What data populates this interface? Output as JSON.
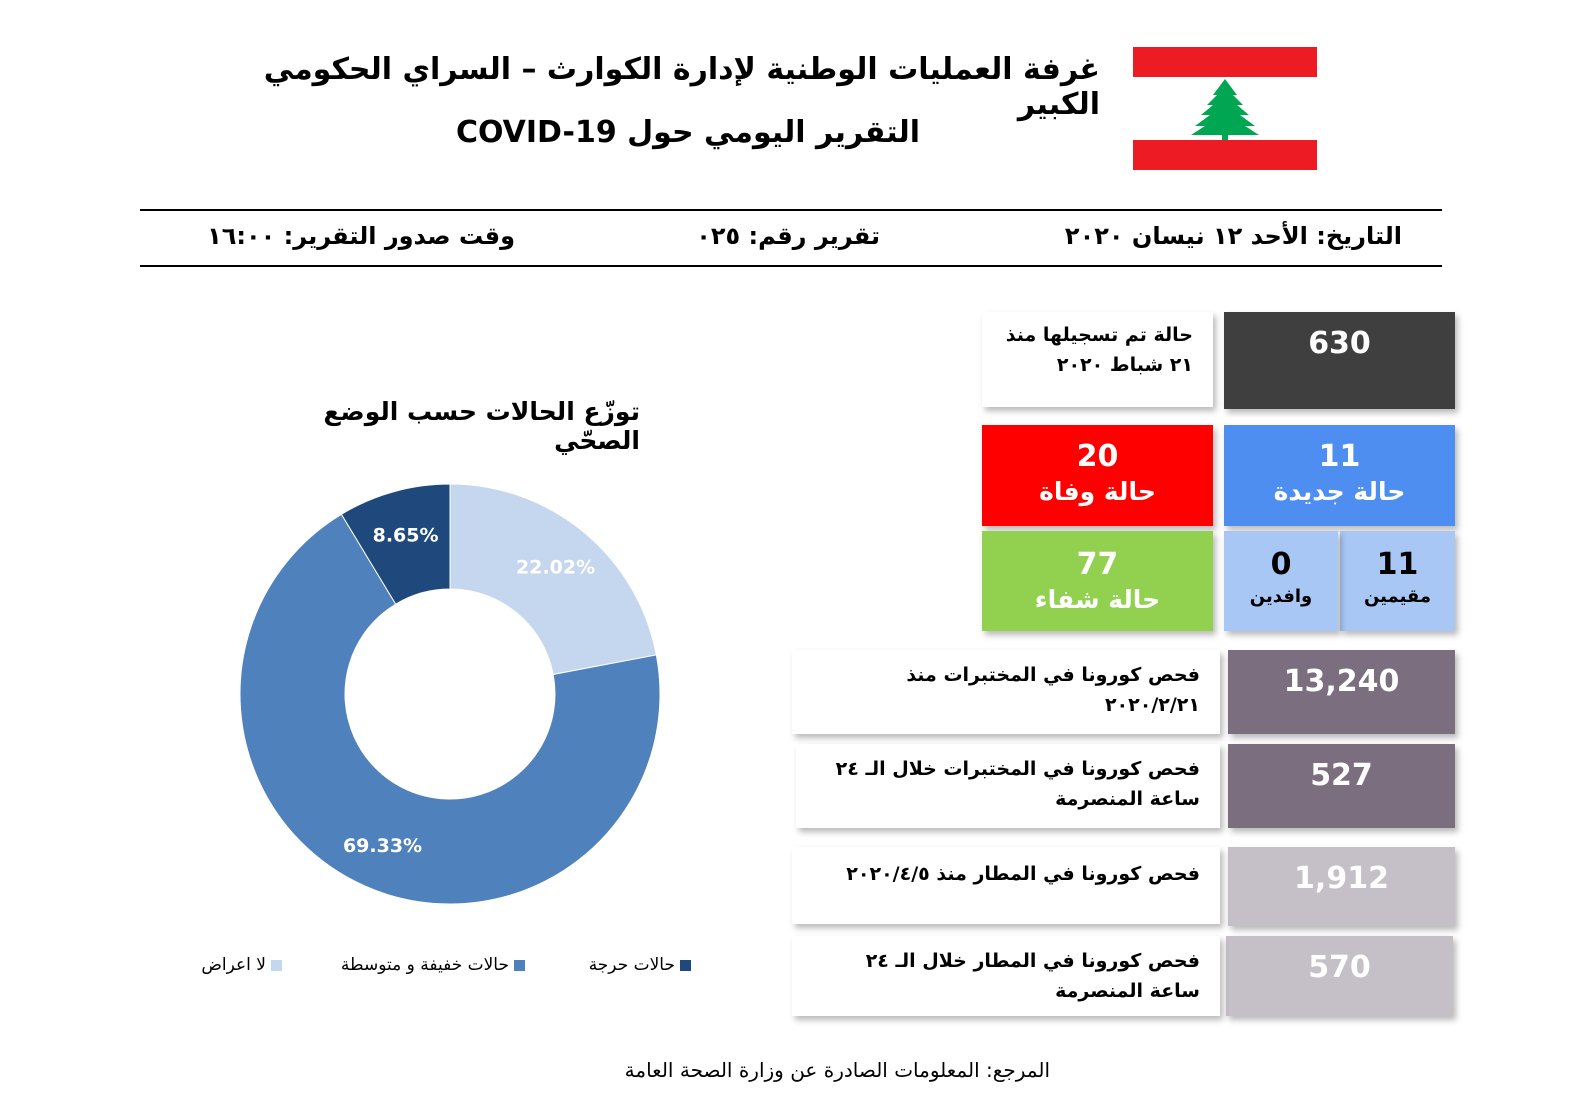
{
  "header": {
    "title": "غرفة العمليات الوطنية لإدارة الكوارث – السراي الحكومي الكبير",
    "subtitle": "التقرير اليومي حول COVID-19",
    "flag": {
      "icon": "lebanon-flag-cedar-icon",
      "red": "#ed1c24",
      "green": "#00a651"
    }
  },
  "meta": {
    "date": "التاريخ: الأحد ١٢ نيسان ٢٠٢٠",
    "report_number": "تقرير رقم: ٠٢٥",
    "issue_time": "وقت صدور التقرير: ١٦:٠٠"
  },
  "stats": {
    "total": {
      "value": "630",
      "label_line1": "حالة تم تسجيلها منذ",
      "label_line2": "٢١ شباط ٢٠٢٠",
      "color": "#3f3f3f"
    },
    "new_cases": {
      "value": "11",
      "label": "حالة جديدة",
      "color": "#4e8ef0"
    },
    "deaths": {
      "value": "20",
      "label": "حالة وفاة",
      "color": "#ff0000"
    },
    "residents": {
      "value": "11",
      "label": "مقيمين",
      "color": "#a9c7f5"
    },
    "arrivals": {
      "value": "0",
      "label": "وافدين",
      "color": "#a9c7f5"
    },
    "recovered": {
      "value": "77",
      "label": "حالة شفاء",
      "color": "#92d050"
    },
    "tests": [
      {
        "value": "13,240",
        "label_line1": "فحص كورونا في المختبرات منذ",
        "label_line2": "٢٠٢٠/٢/٢١",
        "color": "#7b6e7e"
      },
      {
        "value": "527",
        "label_line1": "فحص كورونا في المختبرات خلال الـ ٢٤",
        "label_line2": "ساعة المنصرمة",
        "color": "#7b6e7e"
      },
      {
        "value": "1,912",
        "label_line1": "فحص كورونا في المطار منذ ٢٠٢٠/٤/٥",
        "label_line2": "",
        "color": "#c5bfc8"
      },
      {
        "value": "570",
        "label_line1": "فحص كورونا في المطار خلال الـ ٢٤",
        "label_line2": "ساعة المنصرمة",
        "color": "#c5bfc8"
      }
    ]
  },
  "chart_data": {
    "type": "pie",
    "title": "توزّع الحالات حسب الوضع الصحّي",
    "categories": [
      "لا اعراض",
      "حالات خفيفة و متوسطة",
      "حالات حرجة"
    ],
    "values": [
      22.02,
      69.33,
      8.65
    ],
    "labels": [
      "22.02%",
      "69.33%",
      "8.65%"
    ],
    "colors": [
      "#c5d7ef",
      "#4f81bd",
      "#1f497d"
    ],
    "label_colors": [
      "#ffffff",
      "#ffffff",
      "#ffffff"
    ],
    "donut": true,
    "legend_position": "bottom"
  },
  "footer": {
    "source": "المرجع: المعلومات الصادرة عن وزارة الصحة العامة"
  }
}
